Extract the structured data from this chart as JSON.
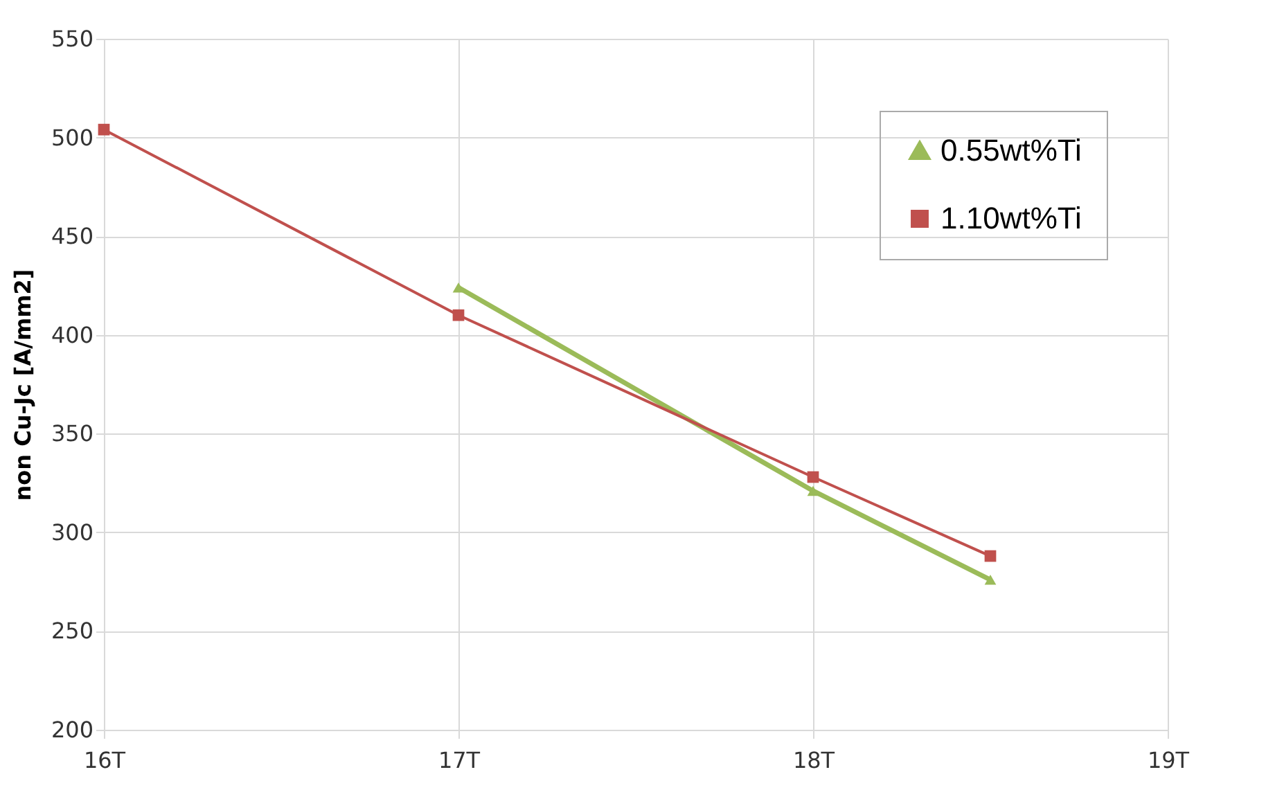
{
  "chart_data": {
    "type": "line",
    "ylabel": "non Cu-Jc [A/mm2]",
    "xlim": [
      16,
      19
    ],
    "xticks": [
      {
        "value": 16,
        "label": "16T"
      },
      {
        "value": 17,
        "label": "17T"
      },
      {
        "value": 18,
        "label": "18T"
      },
      {
        "value": 19,
        "label": "19T"
      }
    ],
    "ylim": [
      200,
      550
    ],
    "yticks": [
      200,
      250,
      300,
      350,
      400,
      450,
      500,
      550
    ],
    "grid": true,
    "legend": "top right",
    "line_style": "solid",
    "series": [
      {
        "name": "0.55wt%Ti",
        "color": "#9bbb59",
        "marker": "triangle",
        "x": [
          17,
          18,
          18.5
        ],
        "values": [
          424,
          321,
          276
        ]
      },
      {
        "name": "1.10wt%Ti",
        "color": "#c0504d",
        "marker": "square",
        "x": [
          16,
          17,
          18,
          18.5
        ],
        "values": [
          504,
          410,
          328,
          288
        ]
      }
    ]
  }
}
